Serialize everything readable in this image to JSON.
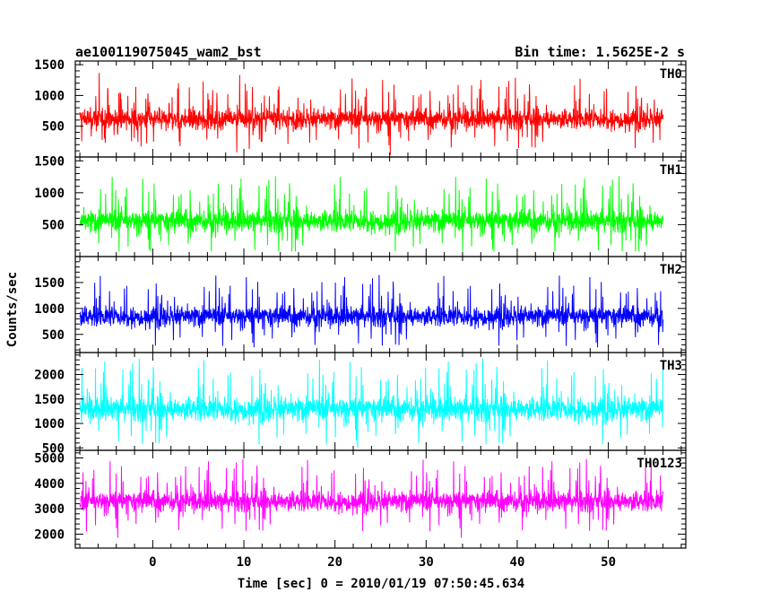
{
  "header": {
    "title": "ae100119075045_wam2_bst",
    "bin_time": "Bin time: 1.5625E-2 s"
  },
  "chart_data": {
    "type": "line",
    "title": "ae100119075045_wam2_bst",
    "xlabel": "Time [sec] 0 = 2010/01/19 07:50:45.634",
    "ylabel": "Counts/sec",
    "xlim": [
      -8.5,
      58.5
    ],
    "x_range_data": [
      -8,
      56
    ],
    "x_ticks": [
      0,
      10,
      20,
      30,
      40,
      50
    ],
    "x_tick_labels": [
      "0",
      "10",
      "20",
      "30",
      "40",
      "50"
    ],
    "bin_time_s": 0.015625,
    "panels": [
      {
        "name": "TH0",
        "color": "#ff0000",
        "ylim": [
          0,
          1560
        ],
        "ticks": [
          500,
          1000,
          1500
        ],
        "tick_labels": [
          "500",
          "1000",
          "1500"
        ],
        "mean": 620,
        "sd": 210,
        "min": 0,
        "max": 1560
      },
      {
        "name": "TH1",
        "color": "#00ff00",
        "ylim": [
          0,
          1560
        ],
        "ticks": [
          500,
          1000,
          1500
        ],
        "tick_labels": [
          "500",
          "1000",
          "1500"
        ],
        "mean": 560,
        "sd": 220,
        "min": 80,
        "max": 1500
      },
      {
        "name": "TH2",
        "color": "#0000ff",
        "ylim": [
          150,
          2000
        ],
        "ticks": [
          500,
          1000,
          1500
        ],
        "tick_labels": [
          "500",
          "1000",
          "1500"
        ],
        "mean": 850,
        "sd": 250,
        "min": 250,
        "max": 1950
      },
      {
        "name": "TH3",
        "color": "#00ffff",
        "ylim": [
          450,
          2450
        ],
        "ticks": [
          500,
          1000,
          1500,
          2000
        ],
        "tick_labels": [
          "500",
          "1000",
          "1500",
          "2000"
        ],
        "mean": 1300,
        "sd": 320,
        "min": 500,
        "max": 2450
      },
      {
        "name": "TH0123",
        "color": "#ff00ff",
        "ylim": [
          1450,
          5300
        ],
        "ticks": [
          2000,
          3000,
          4000,
          5000
        ],
        "tick_labels": [
          "2000",
          "3000",
          "4000",
          "5000"
        ],
        "mean": 3300,
        "sd": 520,
        "min": 1450,
        "max": 5300
      }
    ],
    "grid": false,
    "legend": "none"
  }
}
